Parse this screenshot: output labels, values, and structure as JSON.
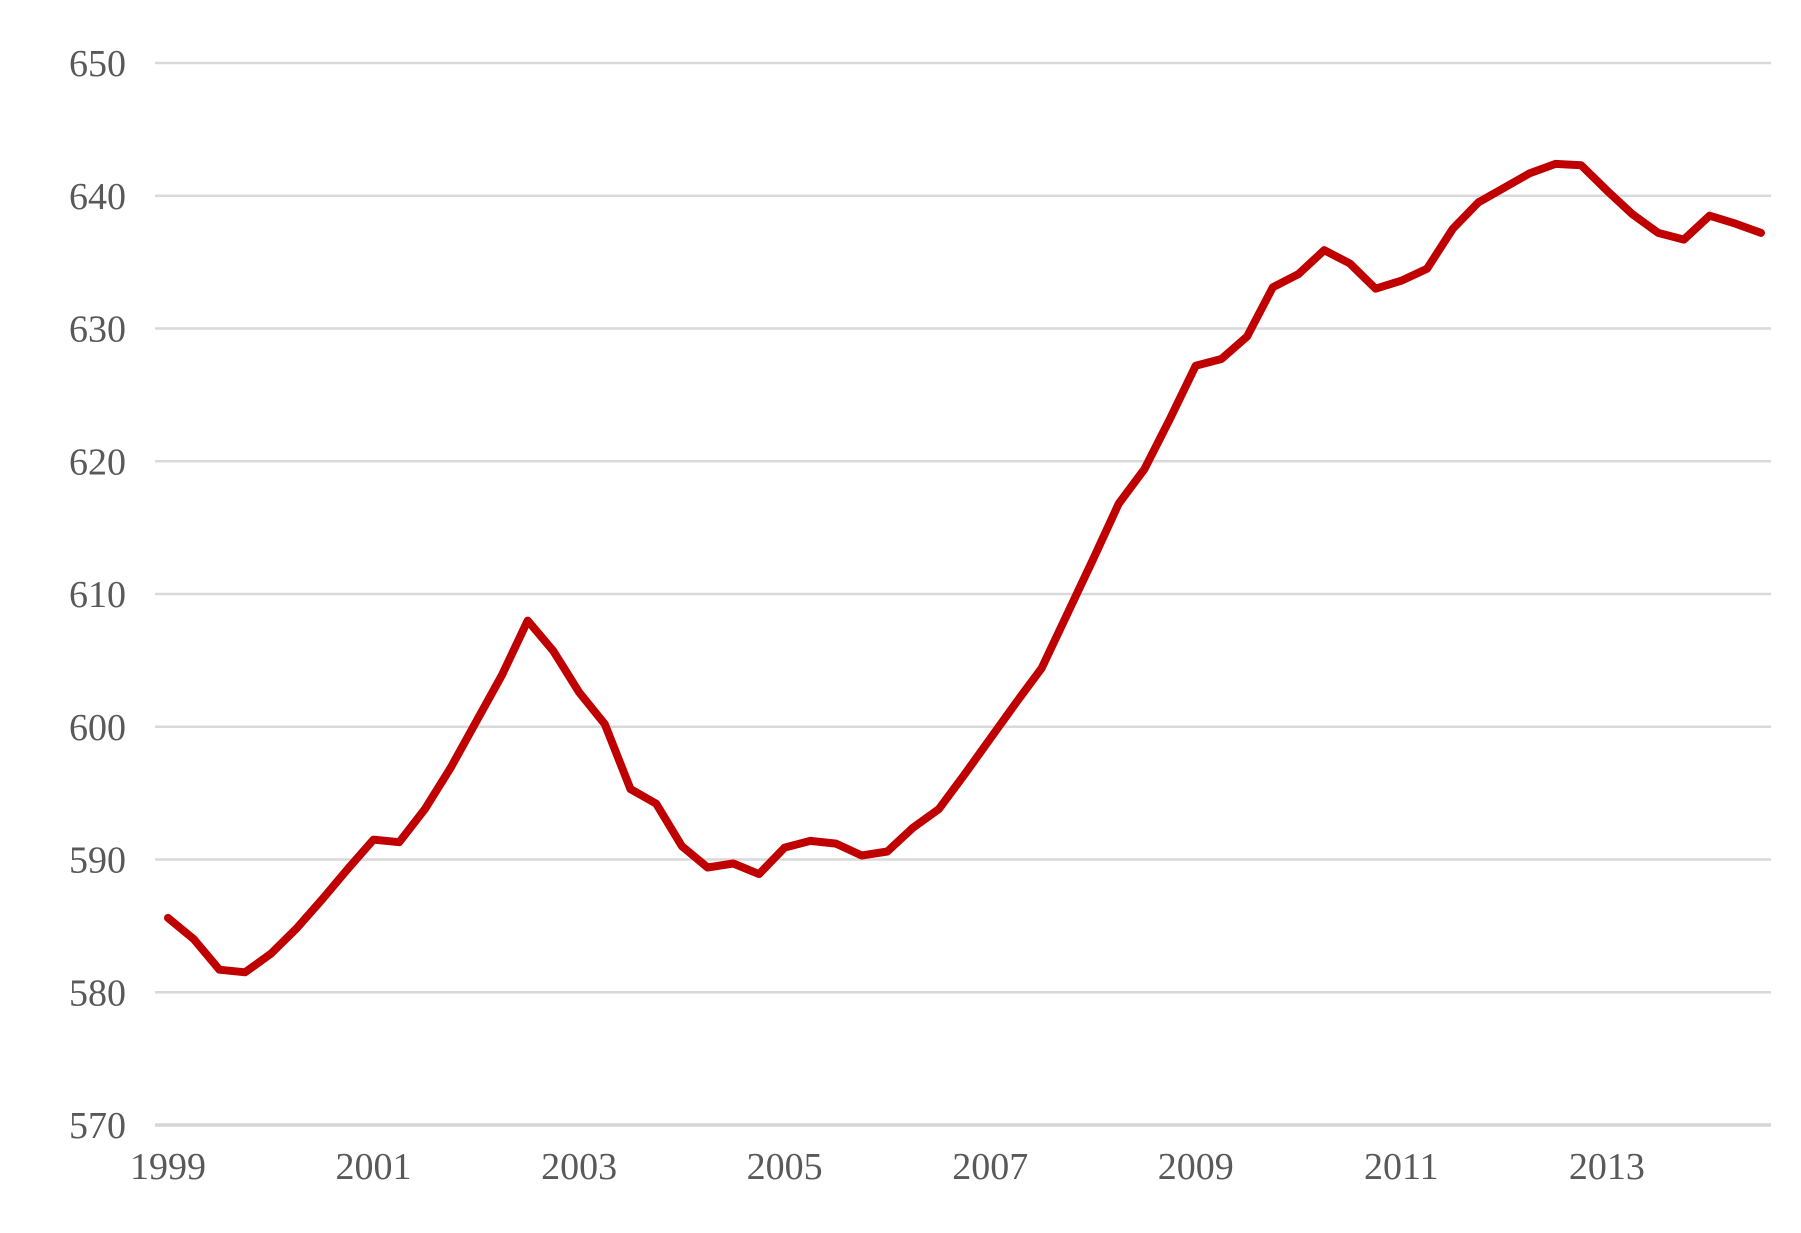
{
  "chart_data": {
    "type": "line",
    "title": "",
    "xlabel": "",
    "ylabel": "",
    "frequency": "quarterly",
    "period_start": "1999 Q1",
    "period_end": "2014 Q3",
    "x_tick_labels": [
      "1999",
      "2001",
      "2003",
      "2005",
      "2007",
      "2009",
      "2011",
      "2013"
    ],
    "y_tick_labels": [
      "570",
      "580",
      "590",
      "600",
      "610",
      "620",
      "630",
      "640",
      "650"
    ],
    "ylim": [
      570,
      650
    ],
    "grid": "horizontal",
    "legend": "none",
    "colors": {
      "line": "#C00000",
      "gridline": "#D9D9D9",
      "axis_line": "#D6D6D6",
      "tick_label": "#595959",
      "background": "#FFFFFF"
    },
    "series": [
      {
        "name": "series-1",
        "periods": [
          "1999Q1",
          "1999Q2",
          "1999Q3",
          "1999Q4",
          "2000Q1",
          "2000Q2",
          "2000Q3",
          "2000Q4",
          "2001Q1",
          "2001Q2",
          "2001Q3",
          "2001Q4",
          "2002Q1",
          "2002Q2",
          "2002Q3",
          "2002Q4",
          "2003Q1",
          "2003Q2",
          "2003Q3",
          "2003Q4",
          "2004Q1",
          "2004Q2",
          "2004Q3",
          "2004Q4",
          "2005Q1",
          "2005Q2",
          "2005Q3",
          "2005Q4",
          "2006Q1",
          "2006Q2",
          "2006Q3",
          "2006Q4",
          "2007Q1",
          "2007Q2",
          "2007Q3",
          "2007Q4",
          "2008Q1",
          "2008Q2",
          "2008Q3",
          "2008Q4",
          "2009Q1",
          "2009Q2",
          "2009Q3",
          "2009Q4",
          "2010Q1",
          "2010Q2",
          "2010Q3",
          "2010Q4",
          "2011Q1",
          "2011Q2",
          "2011Q3",
          "2011Q4",
          "2012Q1",
          "2012Q2",
          "2012Q3",
          "2012Q4",
          "2013Q1",
          "2013Q2",
          "2013Q3",
          "2013Q4",
          "2014Q1",
          "2014Q2",
          "2014Q3"
        ],
        "values": [
          585.6,
          584.0,
          581.7,
          581.5,
          582.9,
          584.8,
          587.0,
          589.3,
          591.5,
          591.3,
          593.8,
          596.9,
          600.4,
          603.9,
          608.0,
          605.7,
          602.6,
          600.2,
          595.3,
          594.2,
          591.0,
          589.4,
          589.7,
          588.9,
          590.9,
          591.4,
          591.2,
          590.3,
          590.6,
          592.4,
          593.8,
          596.4,
          599.1,
          601.8,
          604.4,
          608.5,
          612.6,
          616.8,
          619.4,
          623.2,
          627.2,
          627.7,
          629.4,
          633.1,
          634.1,
          635.9,
          634.9,
          633.0,
          633.6,
          634.5,
          637.5,
          639.5,
          640.6,
          641.7,
          642.4,
          642.3,
          640.4,
          638.6,
          637.2,
          636.7,
          638.5,
          637.9,
          637.2
        ]
      }
    ]
  }
}
